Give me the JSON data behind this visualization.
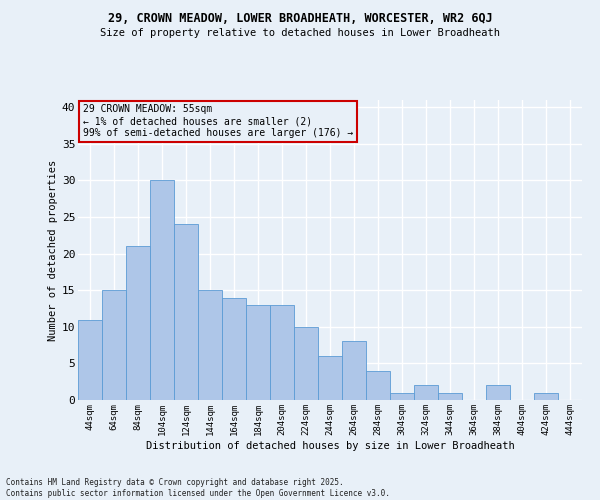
{
  "title": "29, CROWN MEADOW, LOWER BROADHEATH, WORCESTER, WR2 6QJ",
  "subtitle": "Size of property relative to detached houses in Lower Broadheath",
  "xlabel": "Distribution of detached houses by size in Lower Broadheath",
  "ylabel": "Number of detached properties",
  "footer": "Contains HM Land Registry data © Crown copyright and database right 2025.\nContains public sector information licensed under the Open Government Licence v3.0.",
  "annotation_line1": "29 CROWN MEADOW: 55sqm",
  "annotation_line2": "← 1% of detached houses are smaller (2)",
  "annotation_line3": "99% of semi-detached houses are larger (176) →",
  "bar_labels": [
    "44sqm",
    "64sqm",
    "84sqm",
    "104sqm",
    "124sqm",
    "144sqm",
    "164sqm",
    "184sqm",
    "204sqm",
    "224sqm",
    "244sqm",
    "264sqm",
    "284sqm",
    "304sqm",
    "324sqm",
    "344sqm",
    "364sqm",
    "384sqm",
    "404sqm",
    "424sqm",
    "444sqm"
  ],
  "bar_values": [
    11,
    15,
    21,
    30,
    24,
    15,
    14,
    13,
    13,
    10,
    6,
    8,
    4,
    1,
    2,
    1,
    0,
    2,
    0,
    1,
    0
  ],
  "bar_color": "#aec6e8",
  "bar_edge_color": "#5b9bd5",
  "annotation_box_color": "#cc0000",
  "background_color": "#e8f0f8",
  "grid_color": "#ffffff",
  "ylim": [
    0,
    41
  ],
  "yticks": [
    0,
    5,
    10,
    15,
    20,
    25,
    30,
    35,
    40
  ]
}
